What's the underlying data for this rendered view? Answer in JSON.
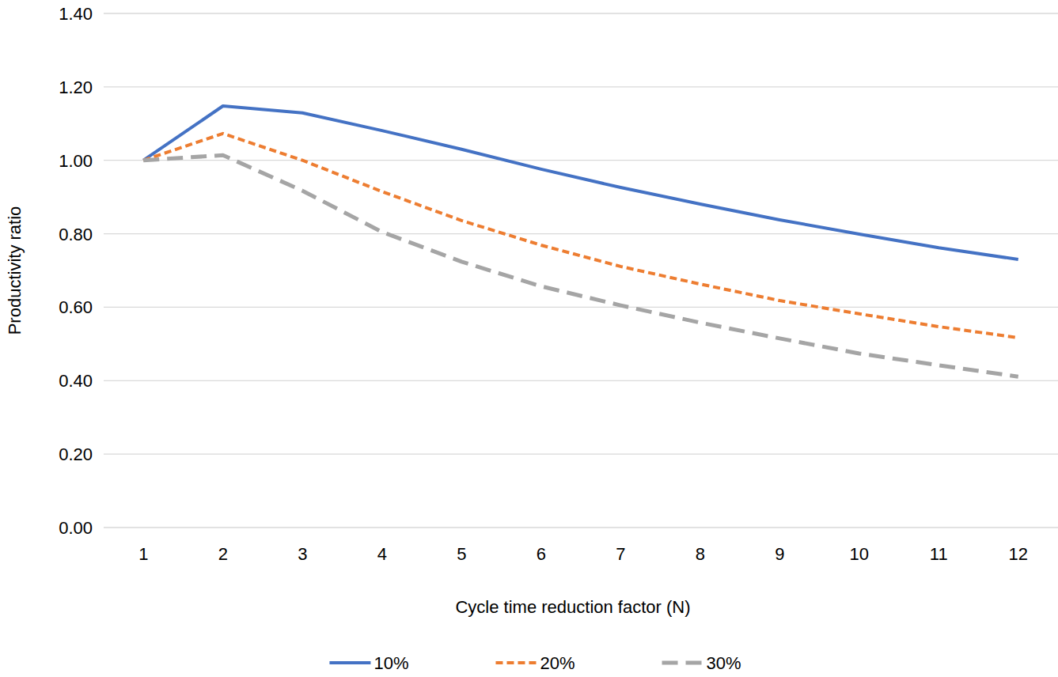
{
  "chart_data": {
    "type": "line",
    "x_label": "Cycle time reduction factor (N)",
    "y_label": "Productivity ratio",
    "categories": [
      "1",
      "2",
      "3",
      "4",
      "5",
      "6",
      "7",
      "8",
      "9",
      "10",
      "11",
      "12"
    ],
    "series": [
      {
        "name": "10%",
        "color": "#4472c4",
        "line_style": "solid",
        "values": [
          1.0,
          1.148,
          1.129,
          1.081,
          1.03,
          0.976,
          0.926,
          0.881,
          0.838,
          0.799,
          0.762,
          0.73
        ]
      },
      {
        "name": "20%",
        "color": "#ed7d31",
        "line_style": "dashed",
        "values": [
          1.0,
          1.073,
          1.0,
          0.915,
          0.836,
          0.769,
          0.711,
          0.663,
          0.618,
          0.582,
          0.547,
          0.517
        ]
      },
      {
        "name": "30%",
        "color": "#a5a5a5",
        "line_style": "long-dashed",
        "values": [
          1.0,
          1.014,
          0.917,
          0.805,
          0.724,
          0.657,
          0.605,
          0.558,
          0.515,
          0.474,
          0.442,
          0.411
        ]
      }
    ],
    "ylim": [
      0,
      1.4
    ],
    "yticks": [
      {
        "value": 0,
        "label": "0.00"
      },
      {
        "value": 0.2,
        "label": "0.20"
      },
      {
        "value": 0.4,
        "label": "0.40"
      },
      {
        "value": 0.6,
        "label": "0.60"
      },
      {
        "value": 0.8,
        "label": "0.80"
      },
      {
        "value": 1.0,
        "label": "1.00"
      },
      {
        "value": 1.2,
        "label": "1.20"
      },
      {
        "value": 1.4,
        "label": "1.40"
      }
    ],
    "grid": true,
    "legend": "bottom"
  }
}
